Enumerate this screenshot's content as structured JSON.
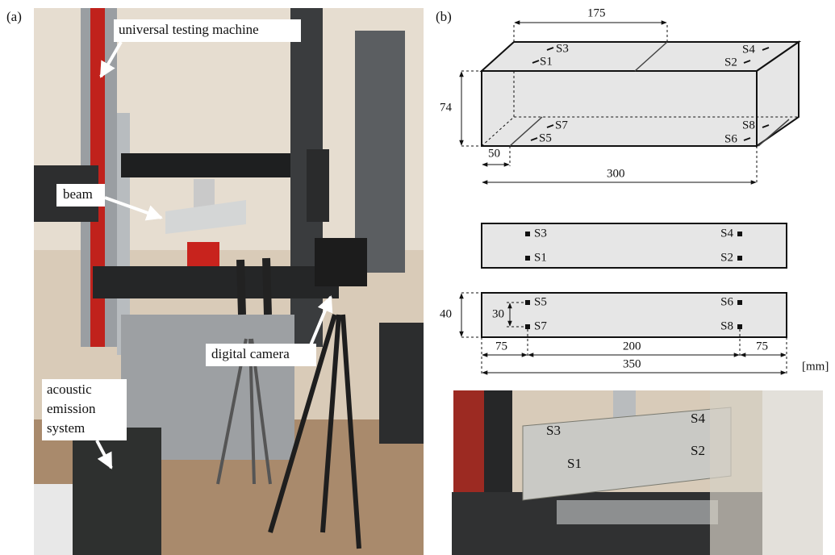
{
  "panel_a": {
    "label": "(a)",
    "callouts": {
      "machine": "universal testing machine",
      "beam": "beam",
      "camera": "digital camera",
      "acoustic": [
        "acoustic",
        "emission",
        "system"
      ]
    }
  },
  "panel_b": {
    "label": "(b)",
    "unit": "[mm]",
    "isometric": {
      "dims": [
        175,
        74,
        50,
        300
      ],
      "sensors": [
        "S1",
        "S2",
        "S3",
        "S4",
        "S5",
        "S6",
        "S7",
        "S8"
      ]
    },
    "top_view": {
      "sensors": [
        "S1",
        "S2",
        "S3",
        "S4"
      ]
    },
    "side_view": {
      "dims": [
        40,
        30,
        75,
        200,
        75,
        350
      ],
      "sensors": [
        "S5",
        "S6",
        "S7",
        "S8"
      ]
    },
    "photo": {
      "sensors": [
        "S1",
        "S2",
        "S3",
        "S4"
      ]
    }
  }
}
